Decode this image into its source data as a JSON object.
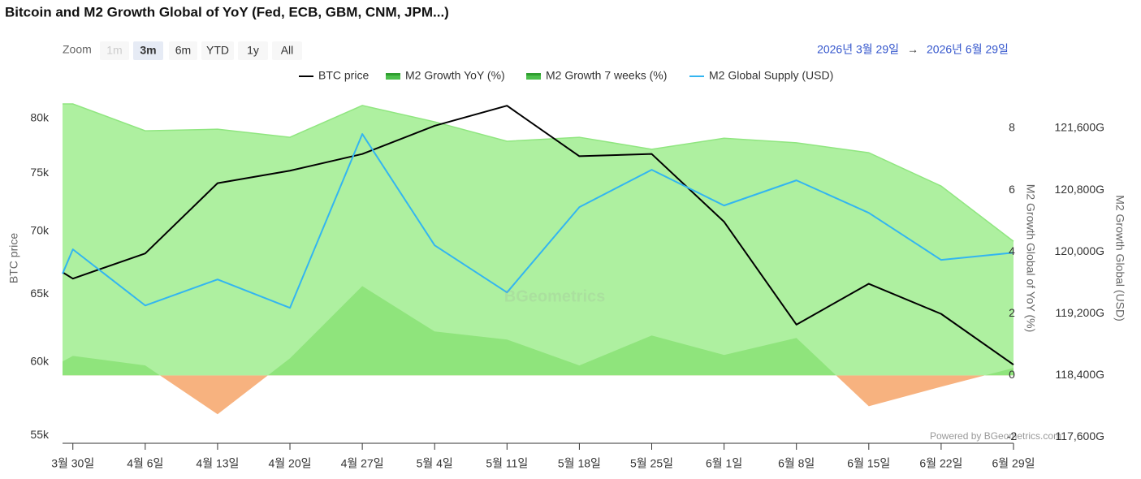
{
  "toolbar": {
    "zoom_label": "Zoom",
    "buttons": [
      "1m",
      "3m",
      "6m",
      "YTD",
      "1y",
      "All"
    ],
    "selected": 1,
    "disabled": [
      0
    ],
    "range_from": "2026년 3월 29일",
    "range_separator": "→",
    "range_to": "2026년 6월 29일"
  },
  "chart_data": {
    "type": "line",
    "title": "Bitcoin and M2 Growth Global of YoY (Fed, ECB, GBM, CNM, JPM...)",
    "credits": "Powered by BGeometrics.com",
    "watermark": "BGeometrics",
    "ylabel": "BTC price",
    "y2label": "M2 Growth Global of YoY (%)",
    "y3label": "M2 Growth Global (USD)",
    "x": [
      "2026-03-29",
      "2026-03-30",
      "2026-04-06",
      "2026-04-13",
      "2026-04-20",
      "2026-04-27",
      "2026-05-04",
      "2026-05-11",
      "2026-05-18",
      "2026-05-25",
      "2026-06-01",
      "2026-06-08",
      "2026-06-15",
      "2026-06-22",
      "2026-06-29"
    ],
    "xlim": [
      "2026-03-29",
      "2026-06-29"
    ],
    "xticks": [
      {
        "value": "2026-03-30",
        "label": "3월 30일"
      },
      {
        "value": "2026-04-06",
        "label": "4월 6일"
      },
      {
        "value": "2026-04-13",
        "label": "4월 13일"
      },
      {
        "value": "2026-04-20",
        "label": "4월 20일"
      },
      {
        "value": "2026-04-27",
        "label": "4월 27일"
      },
      {
        "value": "2026-05-04",
        "label": "5월 4일"
      },
      {
        "value": "2026-05-11",
        "label": "5월 11일"
      },
      {
        "value": "2026-05-18",
        "label": "5월 18일"
      },
      {
        "value": "2026-05-25",
        "label": "5월 25일"
      },
      {
        "value": "2026-06-01",
        "label": "6월 1일"
      },
      {
        "value": "2026-06-08",
        "label": "6월 8일"
      },
      {
        "value": "2026-06-15",
        "label": "6월 15일"
      },
      {
        "value": "2026-06-22",
        "label": "6월 22일"
      },
      {
        "value": "2026-06-29",
        "label": "6월 29일"
      }
    ],
    "ylim": [
      54500,
      82000
    ],
    "ylog": true,
    "yticks": [
      {
        "value": 55000,
        "label": "55k"
      },
      {
        "value": 60000,
        "label": "60k"
      },
      {
        "value": 65000,
        "label": "65k"
      },
      {
        "value": 70000,
        "label": "70k"
      },
      {
        "value": 75000,
        "label": "75k"
      },
      {
        "value": 80000,
        "label": "80k"
      }
    ],
    "y2lim": [
      -2.2,
      9
    ],
    "y2ticks": [
      -2,
      0,
      2,
      4,
      6,
      8
    ],
    "y3lim": [
      117520,
      122000
    ],
    "y3ticks": [
      {
        "value": 117600,
        "label": "117,600G"
      },
      {
        "value": 118400,
        "label": "118,400G"
      },
      {
        "value": 119200,
        "label": "119,200G"
      },
      {
        "value": 120000,
        "label": "120,000G"
      },
      {
        "value": 120800,
        "label": "120,800G"
      },
      {
        "value": 121600,
        "label": "121,600G"
      }
    ],
    "grid": false,
    "series": [
      {
        "name": "M2 Growth YoY (%)",
        "type": "area",
        "axis": "y2",
        "color": "#aef0a0",
        "line_color": "#90e680",
        "values": [
          8.79,
          8.79,
          7.92,
          7.97,
          7.71,
          8.74,
          8.21,
          7.58,
          7.71,
          7.32,
          7.68,
          7.53,
          7.21,
          6.13,
          4.34
        ]
      },
      {
        "name": "M2 Growth 7 weeks (%)",
        "type": "area",
        "axis": "y2",
        "color": "#8fe47c",
        "negative_color": "#f7b27f",
        "values": [
          0.45,
          0.63,
          0.32,
          -1.26,
          0.55,
          2.89,
          1.42,
          1.16,
          0.32,
          1.29,
          0.66,
          1.21,
          -1.0,
          -0.37,
          0.24
        ]
      },
      {
        "name": "BTC price",
        "type": "line",
        "axis": "y",
        "color": "#000000",
        "values": [
          66700,
          66200,
          68200,
          74100,
          75200,
          76700,
          79300,
          81200,
          76500,
          76700,
          70800,
          62700,
          65800,
          63500,
          59800
        ]
      },
      {
        "name": "M2 Global Supply (USD)",
        "type": "line",
        "axis": "y3",
        "color": "#33b5f0",
        "values": [
          119716,
          120032,
          119305,
          119642,
          119274,
          121526,
          120084,
          119474,
          120579,
          121063,
          120600,
          120926,
          120505,
          119895,
          119989
        ]
      }
    ],
    "legend_order": [
      2,
      0,
      1,
      3
    ]
  }
}
